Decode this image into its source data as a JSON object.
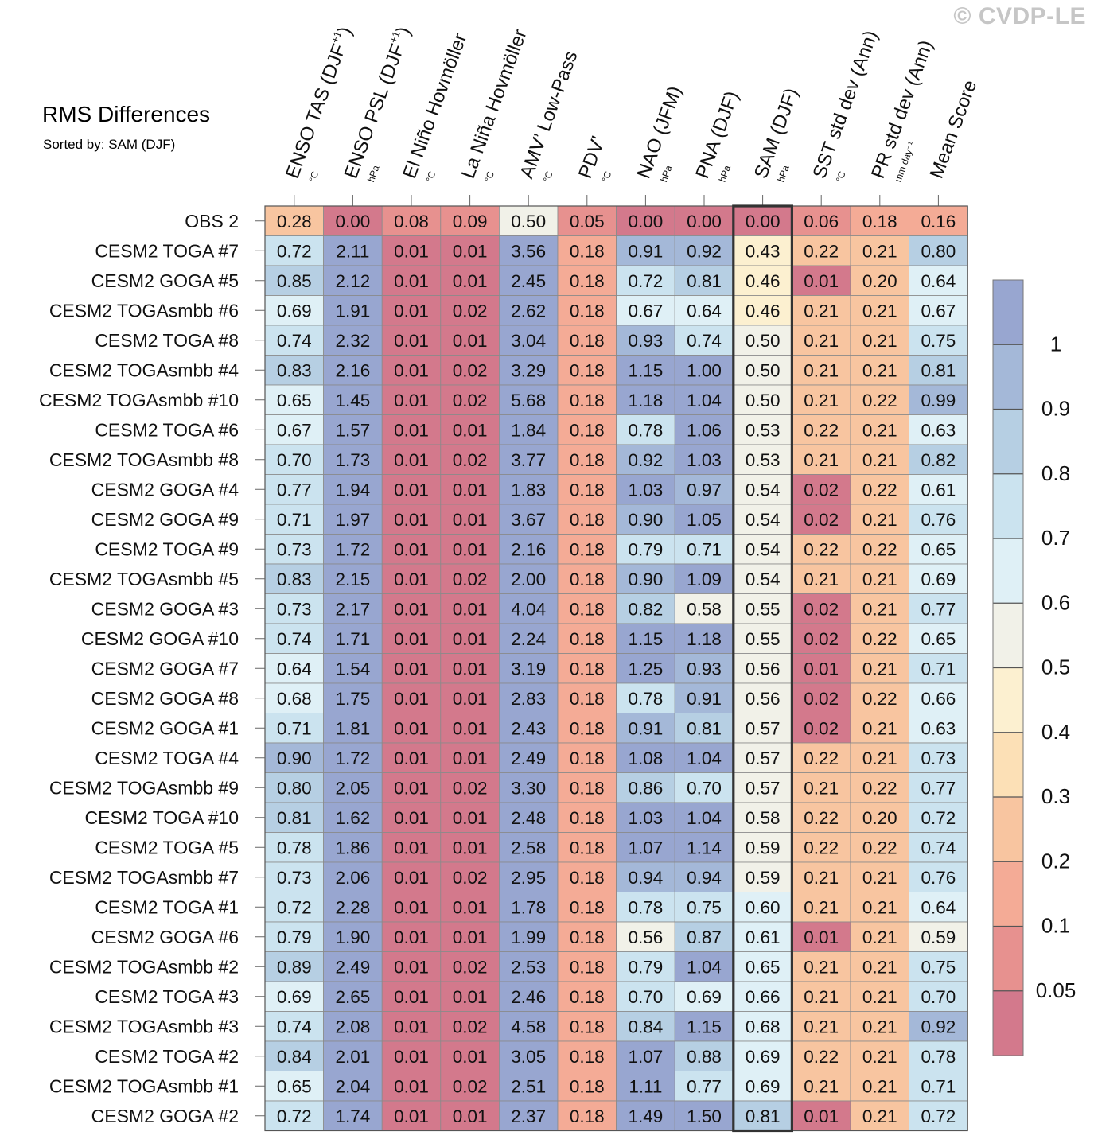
{
  "watermark": "© CVDP-LE",
  "chart_data": {
    "type": "heatmap",
    "title": "RMS Differences",
    "subtitle": "Sorted by: SAM (DJF)",
    "sorted_by": "SAM (DJF)",
    "columns": [
      {
        "name": "ENSO TAS (DJF",
        "sup": "+1",
        "close": ")",
        "unit": "°C"
      },
      {
        "name": "ENSO PSL (DJF",
        "sup": "+1",
        "close": ")",
        "unit": "hPa"
      },
      {
        "name": "El Niño Hovmöller",
        "sup": "",
        "close": "",
        "unit": "°C"
      },
      {
        "name": "La Niña Hovmöller",
        "sup": "",
        "close": "",
        "unit": "°C"
      },
      {
        "name": "AMV’ Low-Pass",
        "sup": "",
        "close": "",
        "unit": "°C"
      },
      {
        "name": "PDV’",
        "sup": "",
        "close": "",
        "unit": "°C"
      },
      {
        "name": "NAO (JFM)",
        "sup": "",
        "close": "",
        "unit": "hPa"
      },
      {
        "name": "PNA (DJF)",
        "sup": "",
        "close": "",
        "unit": "hPa"
      },
      {
        "name": "SAM (DJF)",
        "sup": "",
        "close": "",
        "unit": "hPa"
      },
      {
        "name": "SST std dev (Ann)",
        "sup": "",
        "close": "",
        "unit": "°C"
      },
      {
        "name": "PR std dev (Ann)",
        "sup": "",
        "close": "",
        "unit": "mm day⁻¹"
      },
      {
        "name": "Mean Score",
        "sup": "",
        "close": "",
        "unit": ""
      }
    ],
    "rows": [
      {
        "name": "OBS 2",
        "values": [
          "0.28",
          "0.00",
          "0.08",
          "0.09",
          "0.50",
          "0.05",
          "0.00",
          "0.00",
          "0.00",
          "0.06",
          "0.18",
          "0.16"
        ]
      },
      {
        "name": "CESM2 TOGA #7",
        "values": [
          "0.72",
          "2.11",
          "0.01",
          "0.01",
          "3.56",
          "0.18",
          "0.91",
          "0.92",
          "0.43",
          "0.22",
          "0.21",
          "0.80"
        ]
      },
      {
        "name": "CESM2 GOGA #5",
        "values": [
          "0.85",
          "2.12",
          "0.01",
          "0.01",
          "2.45",
          "0.18",
          "0.72",
          "0.81",
          "0.46",
          "0.01",
          "0.20",
          "0.64"
        ]
      },
      {
        "name": "CESM2 TOGAsmbb #6",
        "values": [
          "0.69",
          "1.91",
          "0.01",
          "0.02",
          "2.62",
          "0.18",
          "0.67",
          "0.64",
          "0.46",
          "0.21",
          "0.21",
          "0.67"
        ]
      },
      {
        "name": "CESM2 TOGA #8",
        "values": [
          "0.74",
          "2.32",
          "0.01",
          "0.01",
          "3.04",
          "0.18",
          "0.93",
          "0.74",
          "0.50",
          "0.21",
          "0.21",
          "0.75"
        ]
      },
      {
        "name": "CESM2 TOGAsmbb #4",
        "values": [
          "0.83",
          "2.16",
          "0.01",
          "0.02",
          "3.29",
          "0.18",
          "1.15",
          "1.00",
          "0.50",
          "0.21",
          "0.21",
          "0.81"
        ]
      },
      {
        "name": "CESM2 TOGAsmbb #10",
        "values": [
          "0.65",
          "1.45",
          "0.01",
          "0.02",
          "5.68",
          "0.18",
          "1.18",
          "1.04",
          "0.50",
          "0.21",
          "0.22",
          "0.99"
        ]
      },
      {
        "name": "CESM2 TOGA #6",
        "values": [
          "0.67",
          "1.57",
          "0.01",
          "0.01",
          "1.84",
          "0.18",
          "0.78",
          "1.06",
          "0.53",
          "0.22",
          "0.21",
          "0.63"
        ]
      },
      {
        "name": "CESM2 TOGAsmbb #8",
        "values": [
          "0.70",
          "1.73",
          "0.01",
          "0.02",
          "3.77",
          "0.18",
          "0.92",
          "1.03",
          "0.53",
          "0.21",
          "0.21",
          "0.82"
        ]
      },
      {
        "name": "CESM2 GOGA #4",
        "values": [
          "0.77",
          "1.94",
          "0.01",
          "0.01",
          "1.83",
          "0.18",
          "1.03",
          "0.97",
          "0.54",
          "0.02",
          "0.22",
          "0.61"
        ]
      },
      {
        "name": "CESM2 GOGA #9",
        "values": [
          "0.71",
          "1.97",
          "0.01",
          "0.01",
          "3.67",
          "0.18",
          "0.90",
          "1.05",
          "0.54",
          "0.02",
          "0.21",
          "0.76"
        ]
      },
      {
        "name": "CESM2 TOGA #9",
        "values": [
          "0.73",
          "1.72",
          "0.01",
          "0.01",
          "2.16",
          "0.18",
          "0.79",
          "0.71",
          "0.54",
          "0.22",
          "0.22",
          "0.65"
        ]
      },
      {
        "name": "CESM2 TOGAsmbb #5",
        "values": [
          "0.83",
          "2.15",
          "0.01",
          "0.02",
          "2.00",
          "0.18",
          "0.90",
          "1.09",
          "0.54",
          "0.21",
          "0.21",
          "0.69"
        ]
      },
      {
        "name": "CESM2 GOGA #3",
        "values": [
          "0.73",
          "2.17",
          "0.01",
          "0.01",
          "4.04",
          "0.18",
          "0.82",
          "0.58",
          "0.55",
          "0.02",
          "0.21",
          "0.77"
        ]
      },
      {
        "name": "CESM2 GOGA #10",
        "values": [
          "0.74",
          "1.71",
          "0.01",
          "0.01",
          "2.24",
          "0.18",
          "1.15",
          "1.18",
          "0.55",
          "0.02",
          "0.22",
          "0.65"
        ]
      },
      {
        "name": "CESM2 GOGA #7",
        "values": [
          "0.64",
          "1.54",
          "0.01",
          "0.01",
          "3.19",
          "0.18",
          "1.25",
          "0.93",
          "0.56",
          "0.01",
          "0.21",
          "0.71"
        ]
      },
      {
        "name": "CESM2 GOGA #8",
        "values": [
          "0.68",
          "1.75",
          "0.01",
          "0.01",
          "2.83",
          "0.18",
          "0.78",
          "0.91",
          "0.56",
          "0.02",
          "0.22",
          "0.66"
        ]
      },
      {
        "name": "CESM2 GOGA #1",
        "values": [
          "0.71",
          "1.81",
          "0.01",
          "0.01",
          "2.43",
          "0.18",
          "0.91",
          "0.81",
          "0.57",
          "0.02",
          "0.21",
          "0.63"
        ]
      },
      {
        "name": "CESM2 TOGA #4",
        "values": [
          "0.90",
          "1.72",
          "0.01",
          "0.01",
          "2.49",
          "0.18",
          "1.08",
          "1.04",
          "0.57",
          "0.22",
          "0.21",
          "0.73"
        ]
      },
      {
        "name": "CESM2 TOGAsmbb #9",
        "values": [
          "0.80",
          "2.05",
          "0.01",
          "0.02",
          "3.30",
          "0.18",
          "0.86",
          "0.70",
          "0.57",
          "0.21",
          "0.22",
          "0.77"
        ]
      },
      {
        "name": "CESM2 TOGA #10",
        "values": [
          "0.81",
          "1.62",
          "0.01",
          "0.01",
          "2.48",
          "0.18",
          "1.03",
          "1.04",
          "0.58",
          "0.22",
          "0.20",
          "0.72"
        ]
      },
      {
        "name": "CESM2 TOGA #5",
        "values": [
          "0.78",
          "1.86",
          "0.01",
          "0.01",
          "2.58",
          "0.18",
          "1.07",
          "1.14",
          "0.59",
          "0.22",
          "0.22",
          "0.74"
        ]
      },
      {
        "name": "CESM2 TOGAsmbb #7",
        "values": [
          "0.73",
          "2.06",
          "0.01",
          "0.02",
          "2.95",
          "0.18",
          "0.94",
          "0.94",
          "0.59",
          "0.21",
          "0.21",
          "0.76"
        ]
      },
      {
        "name": "CESM2 TOGA #1",
        "values": [
          "0.72",
          "2.28",
          "0.01",
          "0.01",
          "1.78",
          "0.18",
          "0.78",
          "0.75",
          "0.60",
          "0.21",
          "0.21",
          "0.64"
        ]
      },
      {
        "name": "CESM2 GOGA #6",
        "values": [
          "0.79",
          "1.90",
          "0.01",
          "0.01",
          "1.99",
          "0.18",
          "0.56",
          "0.87",
          "0.61",
          "0.01",
          "0.21",
          "0.59"
        ]
      },
      {
        "name": "CESM2 TOGAsmbb #2",
        "values": [
          "0.89",
          "2.49",
          "0.01",
          "0.02",
          "2.53",
          "0.18",
          "0.79",
          "1.04",
          "0.65",
          "0.21",
          "0.21",
          "0.75"
        ]
      },
      {
        "name": "CESM2 TOGA #3",
        "values": [
          "0.69",
          "2.65",
          "0.01",
          "0.01",
          "2.46",
          "0.18",
          "0.70",
          "0.69",
          "0.66",
          "0.21",
          "0.21",
          "0.70"
        ]
      },
      {
        "name": "CESM2 TOGAsmbb #3",
        "values": [
          "0.74",
          "2.08",
          "0.01",
          "0.02",
          "4.58",
          "0.18",
          "0.84",
          "1.15",
          "0.68",
          "0.21",
          "0.21",
          "0.92"
        ]
      },
      {
        "name": "CESM2 TOGA #2",
        "values": [
          "0.84",
          "2.01",
          "0.01",
          "0.01",
          "3.05",
          "0.18",
          "1.07",
          "0.88",
          "0.69",
          "0.22",
          "0.21",
          "0.78"
        ]
      },
      {
        "name": "CESM2 TOGAsmbb #1",
        "values": [
          "0.65",
          "2.04",
          "0.01",
          "0.02",
          "2.51",
          "0.18",
          "1.11",
          "0.77",
          "0.69",
          "0.21",
          "0.21",
          "0.71"
        ]
      },
      {
        "name": "CESM2 GOGA #2",
        "values": [
          "0.72",
          "1.74",
          "0.01",
          "0.01",
          "2.37",
          "0.18",
          "1.49",
          "1.50",
          "0.81",
          "0.01",
          "0.21",
          "0.72"
        ]
      }
    ],
    "colorbar": {
      "thresholds": [
        0.05,
        0.1,
        0.2,
        0.3,
        0.4,
        0.5,
        0.6,
        0.7,
        0.8,
        0.9,
        1
      ],
      "labels": [
        "0.05",
        "0.1",
        "0.2",
        "0.3",
        "0.4",
        "0.5",
        "0.6",
        "0.7",
        "0.8",
        "0.9",
        "1"
      ],
      "colors": [
        "#d3798c",
        "#e7918f",
        "#f4ab96",
        "#f8c5a0",
        "#fce0b6",
        "#fcf0d0",
        "#f1f1e8",
        "#dff0f6",
        "#cbe3ef",
        "#b6cfe3",
        "#a4b8d8",
        "#98a6d0"
      ]
    },
    "highlight_border_color": "#333333"
  }
}
